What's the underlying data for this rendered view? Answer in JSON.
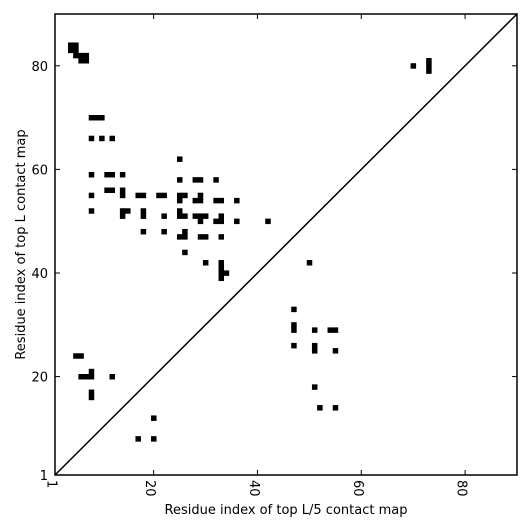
{
  "chart_data": {
    "type": "scatter",
    "marker": "square",
    "title": "",
    "xlabel": "Residue index of top L/5 contact map",
    "ylabel": "Residue index of top L contact map",
    "xlim": [
      1,
      90
    ],
    "ylim": [
      1,
      90
    ],
    "xticks": [
      {
        "value": 1,
        "label": "1"
      },
      {
        "value": 20,
        "label": "20"
      },
      {
        "value": 40,
        "label": "40"
      },
      {
        "value": 60,
        "label": "60"
      },
      {
        "value": 80,
        "label": "80"
      }
    ],
    "yticks": [
      {
        "value": 1,
        "label": "1"
      },
      {
        "value": 20,
        "label": "20"
      },
      {
        "value": 40,
        "label": "40"
      },
      {
        "value": 60,
        "label": "60"
      },
      {
        "value": 80,
        "label": "80"
      }
    ],
    "diagonal": true,
    "grid": false,
    "marker_color": "#000000",
    "upper_left_points": [
      [
        4,
        84
      ],
      [
        5,
        84
      ],
      [
        5,
        83
      ],
      [
        4,
        83
      ],
      [
        5,
        82
      ],
      [
        6,
        82
      ],
      [
        7,
        82
      ],
      [
        6,
        81
      ],
      [
        7,
        81
      ],
      [
        8,
        70
      ],
      [
        9,
        70
      ],
      [
        10,
        70
      ],
      [
        8,
        66
      ],
      [
        10,
        66
      ],
      [
        12,
        66
      ],
      [
        8,
        59
      ],
      [
        11,
        59
      ],
      [
        12,
        59
      ],
      [
        14,
        59
      ],
      [
        11,
        56
      ],
      [
        12,
        56
      ],
      [
        14,
        56
      ],
      [
        14,
        55
      ],
      [
        8,
        55
      ],
      [
        17,
        55
      ],
      [
        18,
        55
      ],
      [
        21,
        55
      ],
      [
        22,
        55
      ],
      [
        8,
        52
      ],
      [
        14,
        52
      ],
      [
        15,
        52
      ],
      [
        14,
        51
      ],
      [
        18,
        52
      ],
      [
        18,
        51
      ],
      [
        22,
        51
      ],
      [
        18,
        48
      ],
      [
        22,
        48
      ],
      [
        25,
        62
      ],
      [
        25,
        58
      ],
      [
        28,
        58
      ],
      [
        29,
        58
      ],
      [
        32,
        58
      ],
      [
        25,
        55
      ],
      [
        26,
        55
      ],
      [
        29,
        55
      ],
      [
        25,
        54
      ],
      [
        28,
        54
      ],
      [
        29,
        54
      ],
      [
        32,
        54
      ],
      [
        33,
        54
      ],
      [
        36,
        54
      ],
      [
        25,
        52
      ],
      [
        25,
        51
      ],
      [
        26,
        51
      ],
      [
        28,
        51
      ],
      [
        29,
        51
      ],
      [
        30,
        51
      ],
      [
        33,
        51
      ],
      [
        29,
        50
      ],
      [
        32,
        50
      ],
      [
        33,
        50
      ],
      [
        36,
        50
      ],
      [
        42,
        50
      ],
      [
        26,
        48
      ],
      [
        25,
        47
      ],
      [
        26,
        47
      ],
      [
        29,
        47
      ],
      [
        30,
        47
      ],
      [
        33,
        47
      ],
      [
        26,
        44
      ],
      [
        30,
        42
      ],
      [
        33,
        42
      ],
      [
        33,
        41
      ],
      [
        34,
        40
      ],
      [
        33,
        40
      ],
      [
        33,
        39
      ],
      [
        5,
        24
      ],
      [
        6,
        24
      ],
      [
        6,
        20
      ],
      [
        7,
        20
      ],
      [
        8,
        20
      ],
      [
        8,
        21
      ],
      [
        12,
        20
      ],
      [
        8,
        17
      ],
      [
        8,
        16
      ]
    ],
    "lower_right_points": [
      [
        70,
        80
      ],
      [
        73,
        81
      ],
      [
        73,
        80
      ],
      [
        73,
        79
      ],
      [
        50,
        42
      ],
      [
        47,
        33
      ],
      [
        47,
        30
      ],
      [
        47,
        29
      ],
      [
        51,
        29
      ],
      [
        54,
        29
      ],
      [
        55,
        29
      ],
      [
        47,
        26
      ],
      [
        51,
        26
      ],
      [
        51,
        25
      ],
      [
        55,
        25
      ],
      [
        51,
        18
      ],
      [
        52,
        14
      ],
      [
        55,
        14
      ],
      [
        20,
        12
      ],
      [
        17,
        8
      ],
      [
        20,
        8
      ]
    ]
  }
}
